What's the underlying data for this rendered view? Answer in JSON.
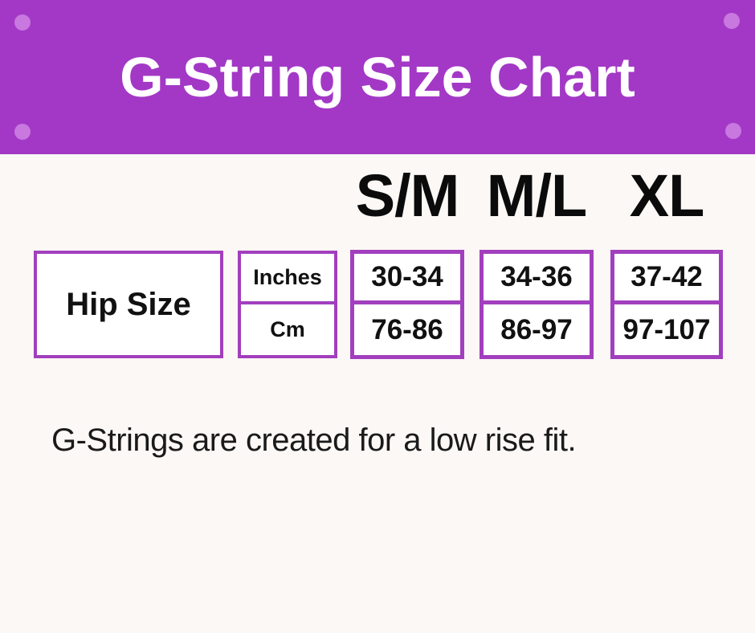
{
  "banner": {
    "title": "G-String Size Chart"
  },
  "table": {
    "row_label": "Hip Size",
    "unit_labels": [
      "Inches",
      "Cm"
    ],
    "sizes": [
      {
        "label": "S/M",
        "inches": "30-34",
        "cm": "76-86"
      },
      {
        "label": "M/L",
        "inches": "34-36",
        "cm": "86-97"
      },
      {
        "label": "XL",
        "inches": "37-42",
        "cm": "97-107"
      }
    ]
  },
  "note": "G-Strings are created for a low rise fit.",
  "colors": {
    "banner_bg": "#A338C6",
    "banner_dot": "#C878DF",
    "box_border": "#A23FBE",
    "background": "#FBF8F5",
    "title_text": "#FFFFFF",
    "body_text": "#111111"
  },
  "chart_data": {
    "type": "table",
    "title": "G-String Size Chart",
    "row_header": "Hip Size",
    "columns": [
      "S/M",
      "M/L",
      "XL"
    ],
    "rows": [
      {
        "unit": "Inches",
        "values": [
          "30-34",
          "34-36",
          "37-42"
        ]
      },
      {
        "unit": "Cm",
        "values": [
          "76-86",
          "86-97",
          "97-107"
        ]
      }
    ],
    "note": "G-Strings are created for a low rise fit."
  }
}
